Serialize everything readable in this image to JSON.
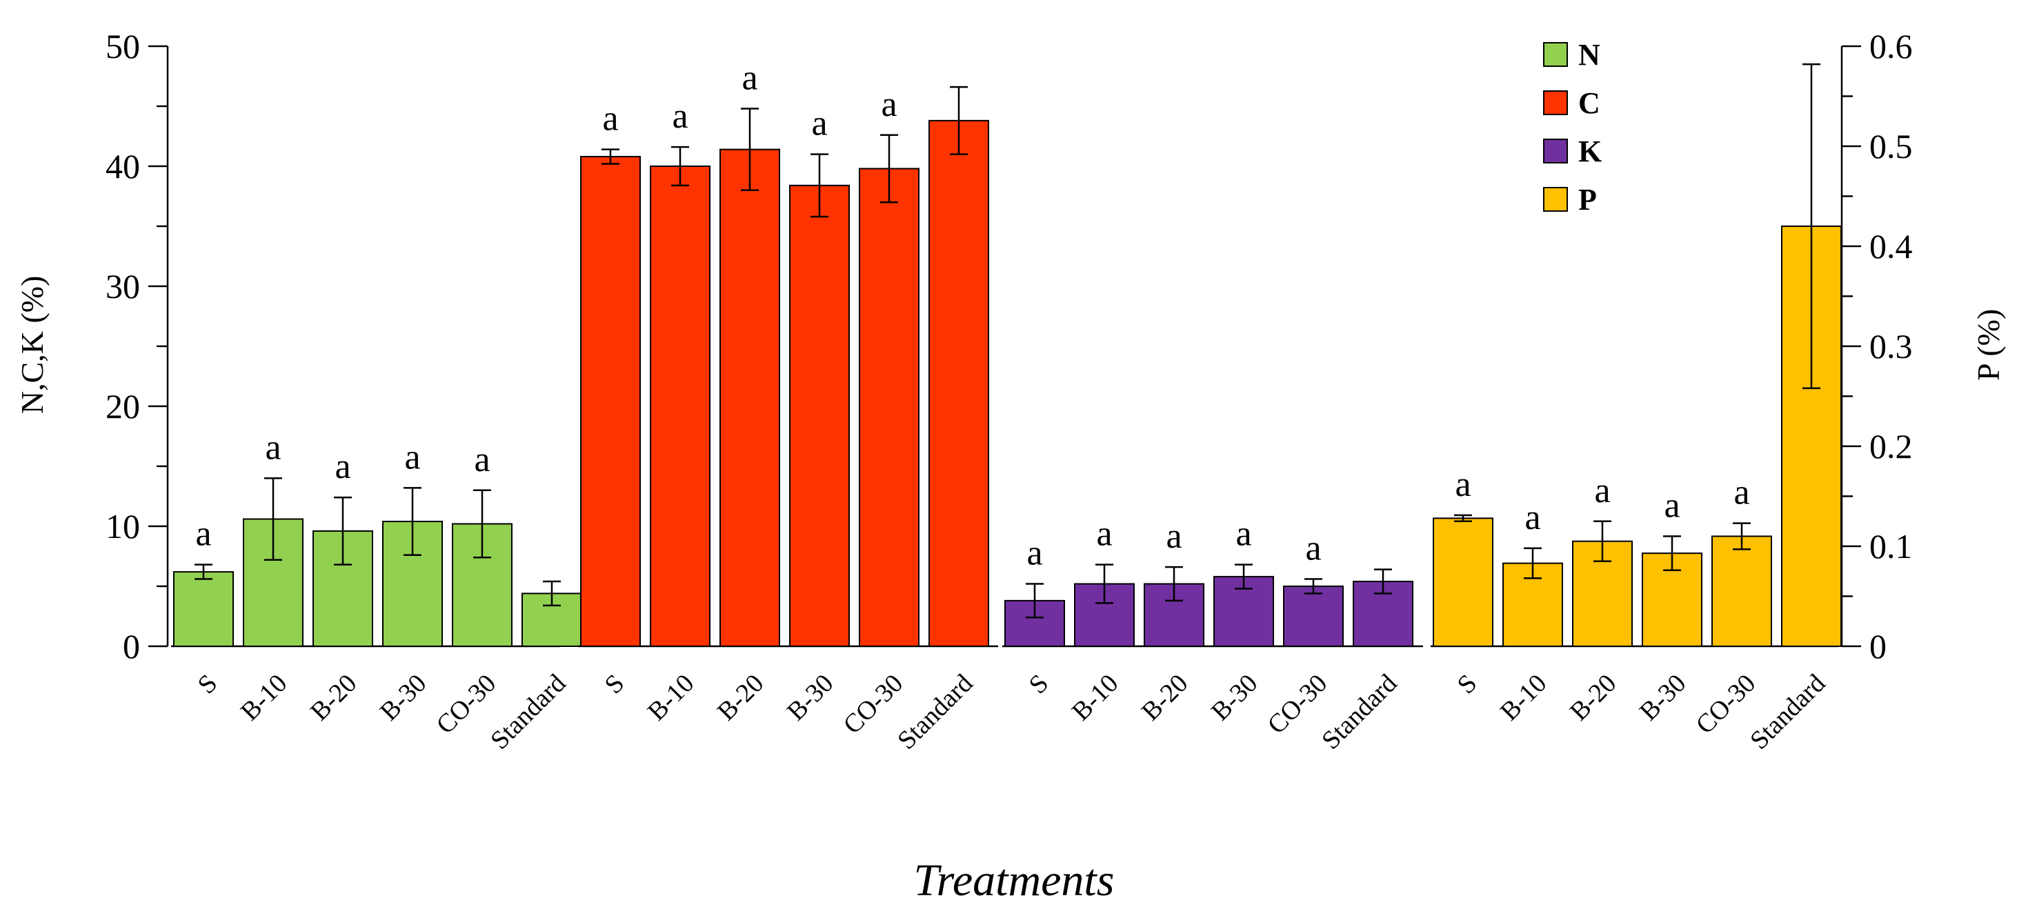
{
  "chart_data": {
    "type": "bar",
    "xlabel": "Treatments",
    "ylabel_left": "N,C,K (%)",
    "ylabel_right": "P (%)",
    "ylim_left": [
      0,
      50
    ],
    "ylim_right": [
      0,
      0.6
    ],
    "left_ticks": [
      "0",
      "10",
      "20",
      "30",
      "40",
      "50"
    ],
    "right_ticks": [
      "0",
      "0.1",
      "0.2",
      "0.3",
      "0.4",
      "0.5",
      "0.6"
    ],
    "categories": [
      "S",
      "B-10",
      "B-20",
      "B-30",
      "CO-30",
      "Standard"
    ],
    "legend": [
      {
        "name": "N",
        "color": "#92d050"
      },
      {
        "name": "C",
        "color": "#ff3300"
      },
      {
        "name": "K",
        "color": "#7030a0"
      },
      {
        "name": "P",
        "color": "#ffc000"
      }
    ],
    "series": [
      {
        "name": "N",
        "axis": "left",
        "color": "#92d050",
        "values": [
          6.2,
          10.6,
          9.6,
          10.4,
          10.2,
          4.4
        ],
        "errors": [
          0.6,
          3.4,
          2.8,
          2.8,
          2.8,
          1.0
        ],
        "labels": [
          "a",
          "a",
          "a",
          "a",
          "a",
          ""
        ]
      },
      {
        "name": "C",
        "axis": "left",
        "color": "#ff3300",
        "values": [
          40.8,
          40.0,
          41.4,
          38.4,
          39.8,
          43.8
        ],
        "errors": [
          0.6,
          1.6,
          3.4,
          2.6,
          2.8,
          2.8
        ],
        "labels": [
          "a",
          "a",
          "a",
          "a",
          "a",
          ""
        ]
      },
      {
        "name": "K",
        "axis": "left",
        "color": "#7030a0",
        "values": [
          3.8,
          5.2,
          5.2,
          5.8,
          5.0,
          5.4
        ],
        "errors": [
          1.4,
          1.6,
          1.4,
          1.0,
          0.6,
          1.0
        ],
        "labels": [
          "a",
          "a",
          "a",
          "a",
          "a",
          ""
        ]
      },
      {
        "name": "P",
        "axis": "right",
        "color": "#ffc000",
        "values": [
          0.128,
          0.083,
          0.105,
          0.093,
          0.11,
          0.42
        ],
        "errors": [
          0.003,
          0.015,
          0.02,
          0.017,
          0.013,
          0.162
        ],
        "labels": [
          "a",
          "a",
          "a",
          "a",
          "a",
          ""
        ]
      }
    ]
  }
}
